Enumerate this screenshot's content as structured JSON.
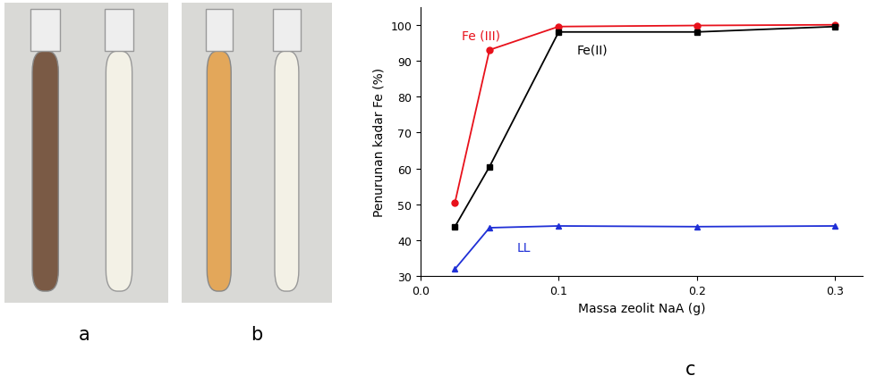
{
  "panel_labels": [
    "a",
    "b",
    "c"
  ],
  "chart_data": {
    "type": "line",
    "x_label": "Massa zeolit NaA (g)",
    "y_label": "Penurunan kadar Fe (%)",
    "x": [
      0.025,
      0.05,
      0.1,
      0.2,
      0.3
    ],
    "series": [
      {
        "name": "Fe (III)",
        "color": "#e8111b",
        "marker": "circle",
        "values": [
          50.5,
          93,
          99.5,
          99.8,
          100
        ]
      },
      {
        "name": "Fe(II)",
        "color": "#000000",
        "marker": "square",
        "values": [
          43.8,
          60.5,
          98,
          98,
          99.5
        ]
      },
      {
        "name": "LL",
        "color": "#1f2fd6",
        "marker": "triangle",
        "values": [
          32,
          43.5,
          44,
          43.8,
          44
        ]
      }
    ],
    "xlim": [
      0,
      0.32
    ],
    "xticks": [
      {
        "value": 0,
        "label": "0.0"
      },
      0.1,
      0.2,
      0.3
    ],
    "ylim": [
      30,
      105
    ],
    "yticks": [
      30,
      40,
      50,
      60,
      70,
      80,
      90,
      100
    ],
    "grid": false
  }
}
